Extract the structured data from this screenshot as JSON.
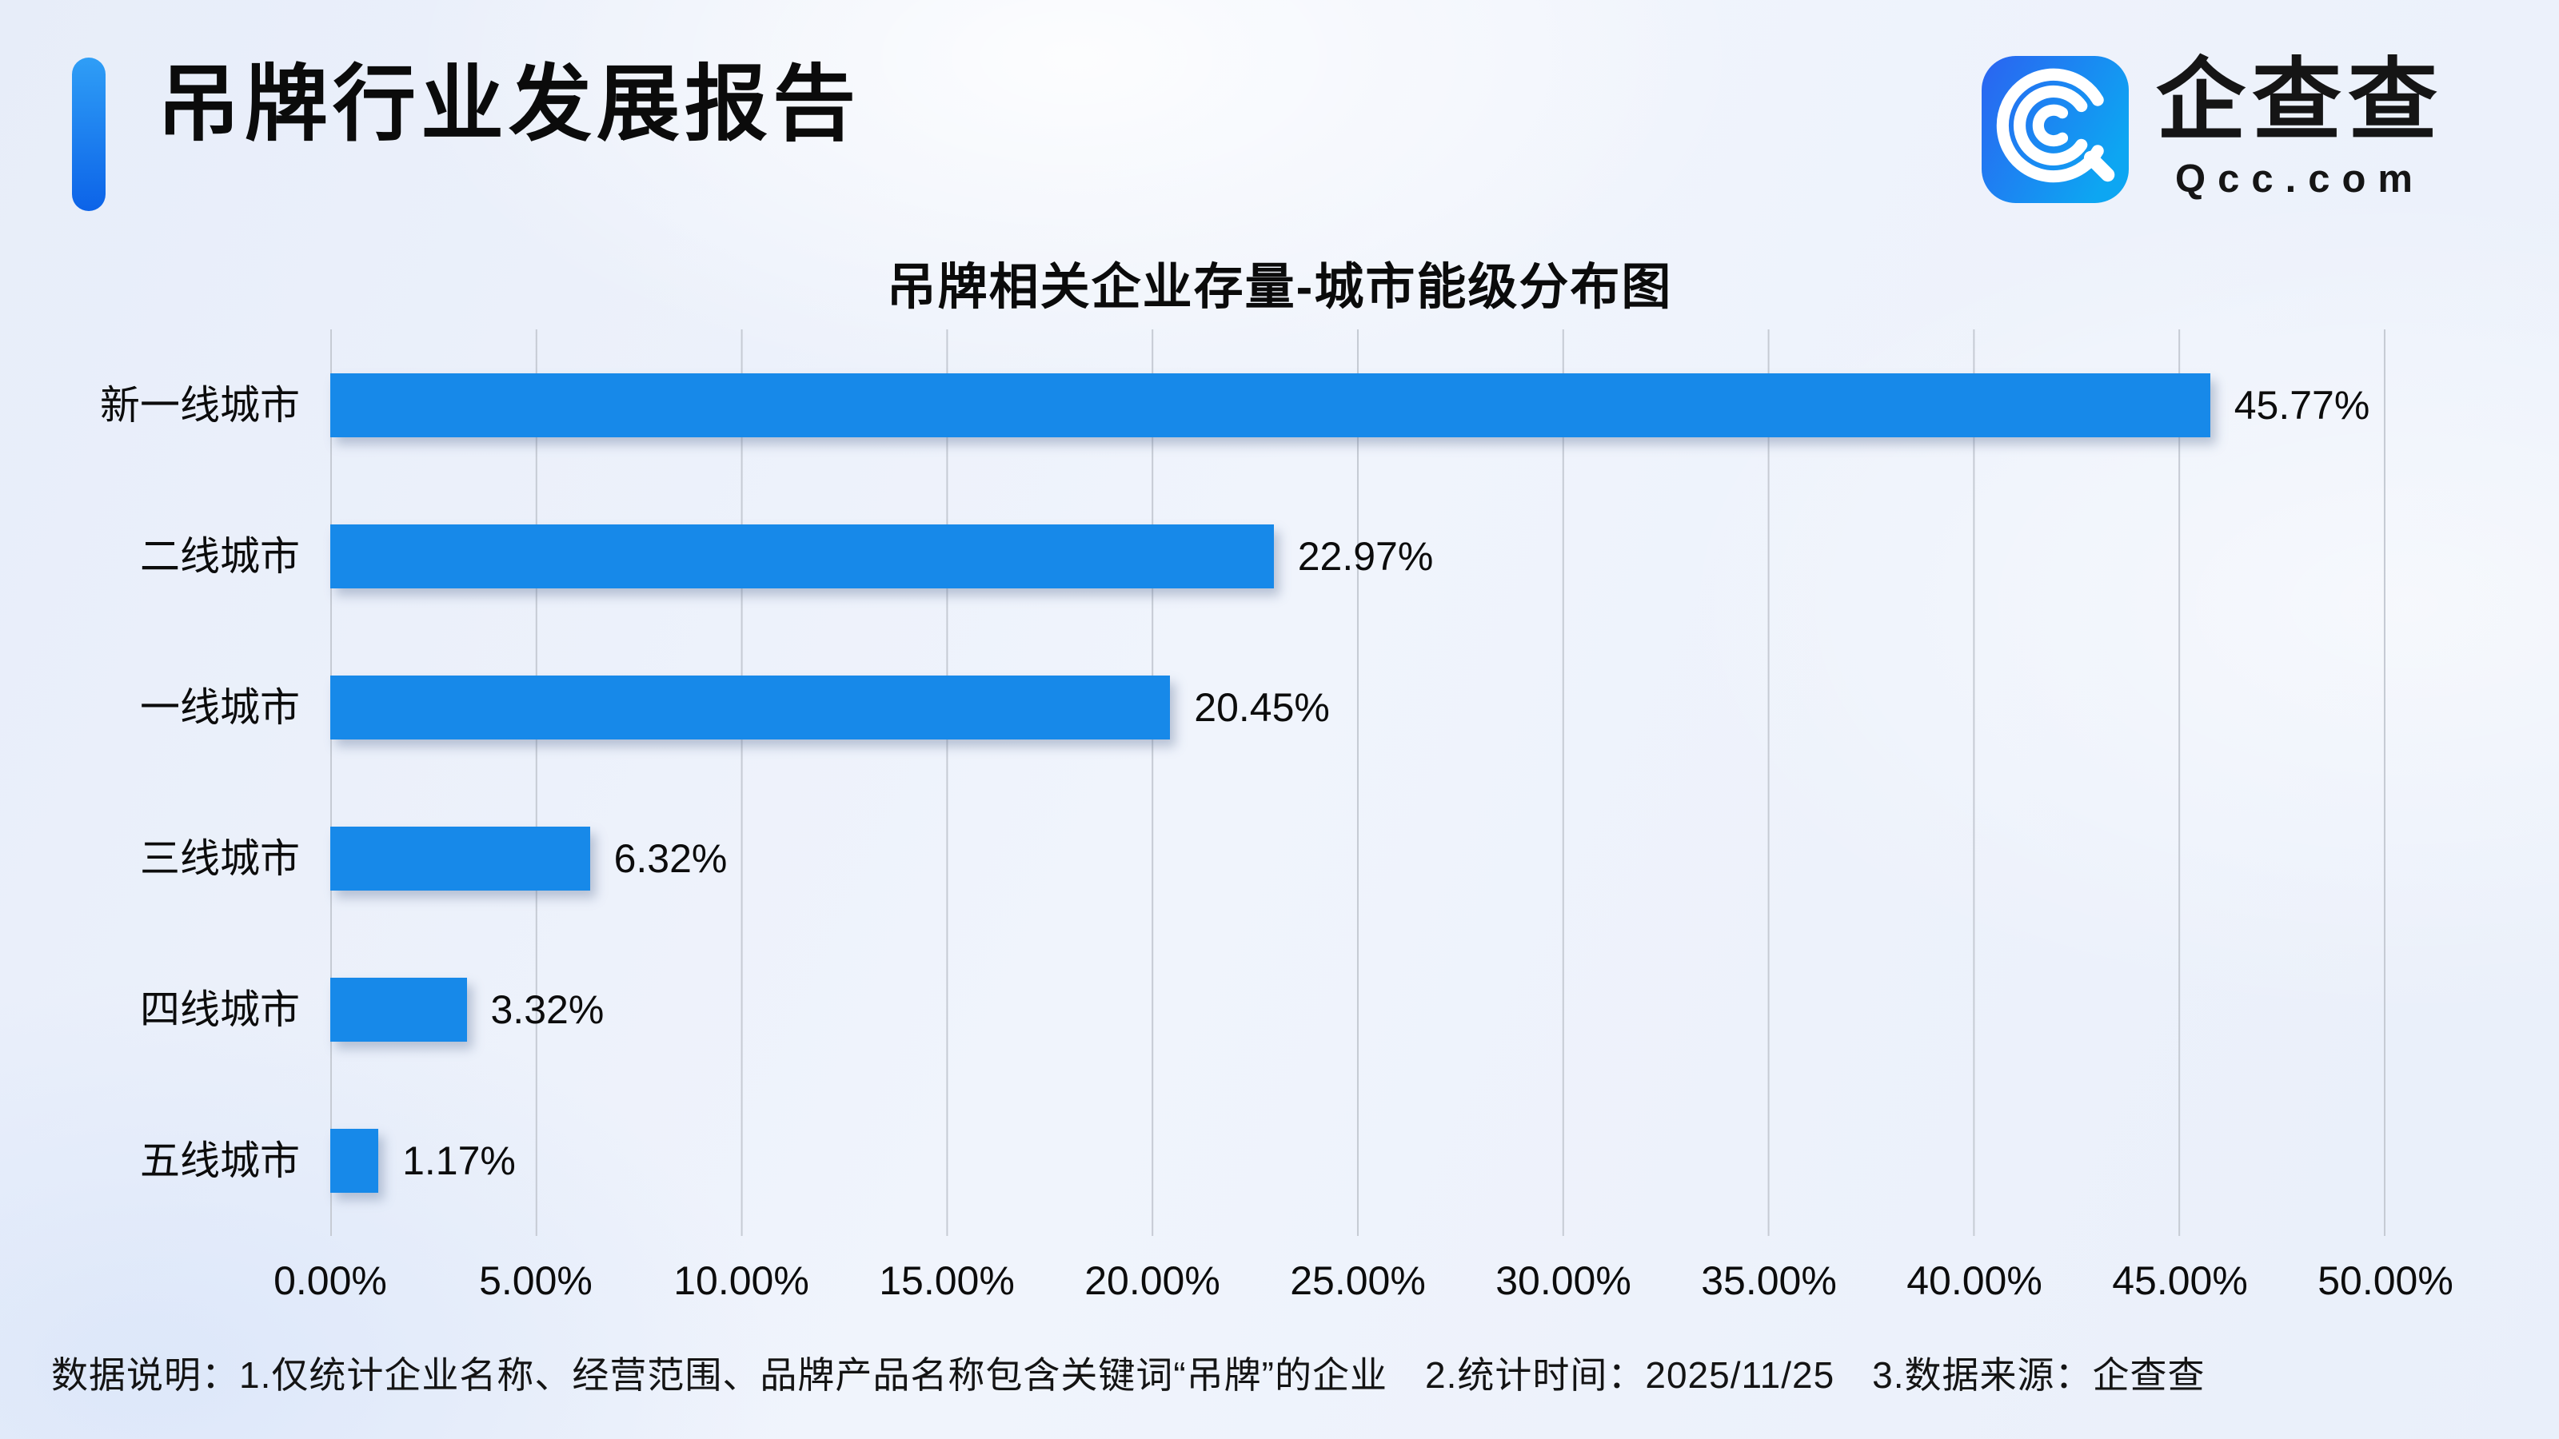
{
  "header": {
    "title": "吊牌行业发展报告",
    "logo": {
      "brand": "企查查",
      "domain": "Qcc.com"
    }
  },
  "chart_data": {
    "type": "bar",
    "orientation": "horizontal",
    "title": "吊牌相关企业存量-城市能级分布图",
    "categories": [
      "新一线城市",
      "二线城市",
      "一线城市",
      "三线城市",
      "四线城市",
      "五线城市"
    ],
    "values": [
      45.77,
      22.97,
      20.45,
      6.32,
      3.32,
      1.17
    ],
    "value_labels": [
      "45.77%",
      "22.97%",
      "20.45%",
      "6.32%",
      "3.32%",
      "1.17%"
    ],
    "xlabel": "",
    "ylabel": "",
    "xlim": [
      0,
      50
    ],
    "x_ticks": [
      "0.00%",
      "5.00%",
      "10.00%",
      "15.00%",
      "20.00%",
      "25.00%",
      "30.00%",
      "35.00%",
      "40.00%",
      "45.00%",
      "50.00%"
    ],
    "grid": "vertical",
    "legend": "none",
    "bar_color": "#1789e9"
  },
  "footer": {
    "note": "数据说明：1.仅统计企业名称、经营范围、品牌产品名称包含关键词“吊牌”的企业　2.统计时间：2025/11/25　3.数据来源：企查查"
  },
  "colors": {
    "accent_blue": "#1789e9",
    "gridline": "#c6cbd4",
    "background": "#edf2fb",
    "text": "#0d0d0d"
  }
}
